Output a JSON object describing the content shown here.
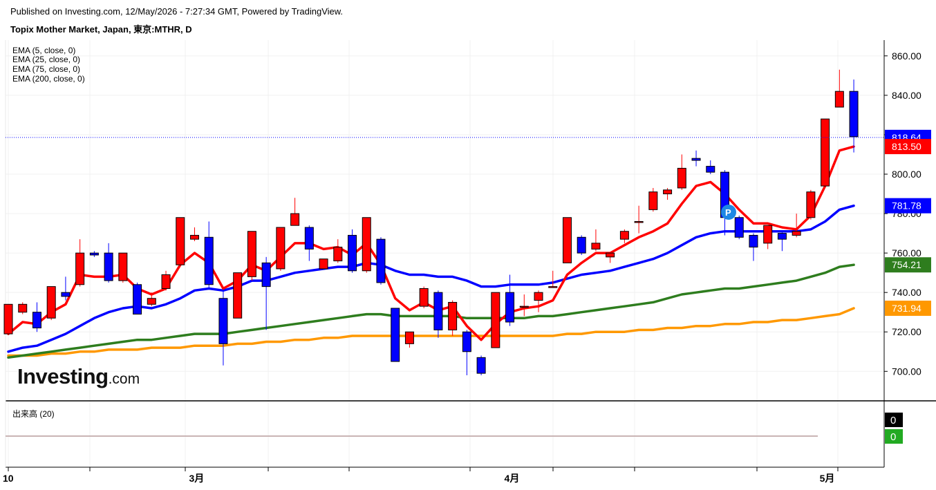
{
  "header": {
    "published": "Published on Investing.com, 12/May/2026 - 7:27:34 GMT, Powered by TradingView.",
    "symbol": "Topix Mother Market, Japan, 東京:MTHR, D"
  },
  "indicators": [
    "EMA (5, close, 0)",
    "EMA (25, close, 0)",
    "EMA (75, close, 0)",
    "EMA (200, close, 0)"
  ],
  "volume_label": "出来高 (20)",
  "logo": {
    "main": "Investing",
    "suffix": ".com"
  },
  "colors": {
    "up": "#ff0000",
    "down": "#0000ff",
    "ema5": "#ff0000",
    "ema25": "#0000ff",
    "ema75": "#2e7d1e",
    "ema200": "#ff9800",
    "last_price_line": "#0000ff"
  },
  "chart_data": {
    "type": "candlestick",
    "ylim": [
      688,
      868
    ],
    "y_ticks": [
      "700.00",
      "720.00",
      "740.00",
      "760.00",
      "780.00",
      "800.00",
      "820.00",
      "840.00",
      "860.00"
    ],
    "x_labels": [
      {
        "label": "10",
        "index": 0
      },
      {
        "label": "3月",
        "index": 13
      },
      {
        "label": "4月",
        "index": 35
      },
      {
        "label": "5月",
        "index": 57
      }
    ],
    "candles": [
      {
        "o": 719,
        "h": 734,
        "c": 734,
        "l": 719
      },
      {
        "o": 730,
        "h": 735,
        "c": 734,
        "l": 729
      },
      {
        "o": 730,
        "h": 735,
        "c": 722,
        "l": 720
      },
      {
        "o": 727,
        "h": 743,
        "c": 743,
        "l": 726
      },
      {
        "o": 740,
        "h": 748,
        "c": 738,
        "l": 736
      },
      {
        "o": 744,
        "h": 767,
        "c": 760,
        "l": 743
      },
      {
        "o": 760,
        "h": 761,
        "c": 759,
        "l": 758
      },
      {
        "o": 760,
        "h": 765,
        "c": 746,
        "l": 745
      },
      {
        "o": 746,
        "h": 760,
        "c": 760,
        "l": 745
      },
      {
        "o": 744,
        "h": 745,
        "c": 729,
        "l": 729
      },
      {
        "o": 734,
        "h": 740,
        "c": 737,
        "l": 733
      },
      {
        "o": 742,
        "h": 751,
        "c": 749,
        "l": 741
      },
      {
        "o": 754,
        "h": 778,
        "c": 778,
        "l": 754
      },
      {
        "o": 767,
        "h": 773,
        "c": 769,
        "l": 766
      },
      {
        "o": 768,
        "h": 776,
        "c": 744,
        "l": 742
      },
      {
        "o": 737,
        "h": 741,
        "c": 714,
        "l": 703
      },
      {
        "o": 727,
        "h": 750,
        "c": 750,
        "l": 727
      },
      {
        "o": 748,
        "h": 771,
        "c": 771,
        "l": 746
      },
      {
        "o": 755,
        "h": 758,
        "c": 743,
        "l": 721
      },
      {
        "o": 752,
        "h": 773,
        "c": 773,
        "l": 751
      },
      {
        "o": 774,
        "h": 788,
        "c": 780,
        "l": 774
      },
      {
        "o": 773,
        "h": 774,
        "c": 762,
        "l": 756
      },
      {
        "o": 752,
        "h": 757,
        "c": 757,
        "l": 752
      },
      {
        "o": 756,
        "h": 767,
        "c": 763,
        "l": 755
      },
      {
        "o": 769,
        "h": 772,
        "c": 751,
        "l": 750
      },
      {
        "o": 751,
        "h": 778,
        "c": 778,
        "l": 750
      },
      {
        "o": 767,
        "h": 768,
        "c": 745,
        "l": 744
      },
      {
        "o": 732,
        "h": 732,
        "c": 705,
        "l": 705
      },
      {
        "o": 714,
        "h": 720,
        "c": 720,
        "l": 712
      },
      {
        "o": 733,
        "h": 743,
        "c": 742,
        "l": 732
      },
      {
        "o": 740,
        "h": 741,
        "c": 721,
        "l": 717
      },
      {
        "o": 721,
        "h": 736,
        "c": 735,
        "l": 718
      },
      {
        "o": 720,
        "h": 721,
        "c": 710,
        "l": 698
      },
      {
        "o": 707,
        "h": 708,
        "c": 699,
        "l": 698
      },
      {
        "o": 712,
        "h": 740,
        "c": 740,
        "l": 712
      },
      {
        "o": 740,
        "h": 749,
        "c": 725,
        "l": 723
      },
      {
        "o": 733,
        "h": 739,
        "c": 733,
        "l": 728
      },
      {
        "o": 736,
        "h": 741,
        "c": 740,
        "l": 730
      },
      {
        "o": 743,
        "h": 751,
        "c": 743,
        "l": 743
      },
      {
        "o": 755,
        "h": 778,
        "c": 778,
        "l": 755
      },
      {
        "o": 768,
        "h": 769,
        "c": 760,
        "l": 759
      },
      {
        "o": 762,
        "h": 772,
        "c": 765,
        "l": 761
      },
      {
        "o": 758,
        "h": 759,
        "c": 760,
        "l": 755
      },
      {
        "o": 767,
        "h": 772,
        "c": 771,
        "l": 765
      },
      {
        "o": 776,
        "h": 784,
        "c": 776,
        "l": 770
      },
      {
        "o": 782,
        "h": 793,
        "c": 791,
        "l": 781
      },
      {
        "o": 790,
        "h": 793,
        "c": 792,
        "l": 787
      },
      {
        "o": 793,
        "h": 810,
        "c": 803,
        "l": 792
      },
      {
        "o": 808,
        "h": 812,
        "c": 807,
        "l": 804
      },
      {
        "o": 804,
        "h": 807,
        "c": 801,
        "l": 800
      },
      {
        "o": 801,
        "h": 802,
        "c": 778,
        "l": 769
      },
      {
        "o": 778,
        "h": 779,
        "c": 768,
        "l": 767
      },
      {
        "o": 769,
        "h": 770,
        "c": 763,
        "l": 756
      },
      {
        "o": 765,
        "h": 774,
        "c": 774,
        "l": 762
      },
      {
        "o": 770,
        "h": 771,
        "c": 767,
        "l": 761
      },
      {
        "o": 769,
        "h": 780,
        "c": 771,
        "l": 768
      },
      {
        "o": 778,
        "h": 792,
        "c": 791,
        "l": 777
      },
      {
        "o": 794,
        "h": 828,
        "c": 828,
        "l": 793
      },
      {
        "o": 834,
        "h": 853,
        "c": 842,
        "l": 834
      },
      {
        "o": 842,
        "h": 848,
        "c": 819,
        "l": 811
      }
    ],
    "series": [
      {
        "name": "EMA (5, close, 0)",
        "color": "#ff0000",
        "values": [
          719,
          725,
          724,
          730,
          734,
          749,
          748,
          748,
          749,
          742,
          739,
          742,
          754,
          760,
          755,
          742,
          746,
          754,
          751,
          758,
          765,
          765,
          762,
          763,
          759,
          765,
          754,
          737,
          731,
          735,
          731,
          733,
          723,
          716,
          724,
          730,
          732,
          733,
          736,
          749,
          755,
          760,
          760,
          764,
          768,
          771,
          775,
          785,
          794,
          796,
          790,
          782,
          775,
          775,
          773,
          772,
          779,
          794,
          812,
          814
        ],
        "last_value_label": "813.50"
      },
      {
        "name": "EMA (25, close, 0)",
        "color": "#0000ff",
        "values": [
          710,
          712,
          713,
          716,
          719,
          723,
          727,
          730,
          732,
          733,
          732,
          734,
          737,
          741,
          742,
          741,
          743,
          746,
          746,
          748,
          750,
          751,
          752,
          753,
          753,
          755,
          754,
          751,
          749,
          749,
          748,
          748,
          746,
          743,
          743,
          744,
          744,
          744,
          745,
          747,
          749,
          750,
          751,
          753,
          755,
          757,
          760,
          764,
          768,
          770,
          771,
          771,
          771,
          771,
          771,
          771,
          772,
          776,
          782,
          784
        ],
        "last_value_label": "781.78"
      },
      {
        "name": "EMA (75, close, 0)",
        "color": "#2e7d1e",
        "values": [
          707,
          708,
          709,
          710,
          711,
          712,
          713,
          714,
          715,
          716,
          716,
          717,
          718,
          719,
          719,
          719,
          720,
          721,
          722,
          723,
          724,
          725,
          726,
          727,
          728,
          729,
          729,
          728,
          728,
          728,
          728,
          728,
          727,
          727,
          727,
          727,
          727,
          728,
          728,
          729,
          730,
          731,
          732,
          733,
          734,
          735,
          737,
          739,
          740,
          741,
          742,
          742,
          743,
          744,
          745,
          746,
          748,
          750,
          753,
          754
        ],
        "last_value_label": "754.21"
      },
      {
        "name": "EMA (200, close, 0)",
        "color": "#ff9800",
        "values": [
          708,
          708,
          708,
          709,
          709,
          710,
          710,
          711,
          711,
          711,
          712,
          712,
          712,
          713,
          713,
          713,
          714,
          714,
          715,
          715,
          716,
          716,
          717,
          717,
          718,
          718,
          718,
          718,
          718,
          718,
          718,
          718,
          718,
          718,
          718,
          718,
          718,
          718,
          718,
          719,
          719,
          720,
          720,
          720,
          721,
          721,
          722,
          722,
          723,
          723,
          724,
          724,
          725,
          725,
          726,
          726,
          727,
          728,
          729,
          732
        ],
        "last_value_label": "731.94"
      }
    ],
    "last_price": 818.64,
    "last_price_label": "818.64",
    "volume": {
      "labels": [
        "0",
        "0"
      ]
    }
  }
}
